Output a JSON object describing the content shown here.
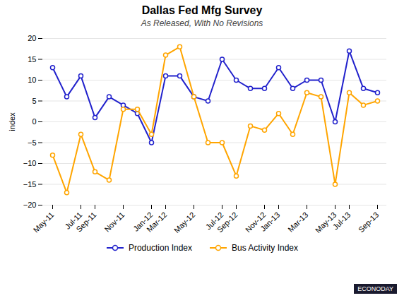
{
  "chart_data": {
    "type": "line",
    "title": "Dallas Fed Mfg Survey",
    "subtitle": "As Released, With No Revisions",
    "ylabel": "index",
    "categories": [
      "May-11",
      null,
      "Jul-11",
      "Sep-11",
      null,
      "Nov-11",
      null,
      "Jan-12",
      "Mar-12",
      null,
      "May-12",
      null,
      "Jul-12",
      "Sep-12",
      null,
      "Nov-12",
      "Jan-13",
      null,
      "Mar-13",
      null,
      "May-13",
      "Jul-13",
      null,
      "Sep-13"
    ],
    "series": [
      {
        "name": "Production Index",
        "color": "#2222CC",
        "marker": "circle",
        "values": [
          13,
          6,
          11,
          1,
          6,
          4,
          2,
          -5,
          11,
          11,
          6,
          5,
          15,
          10,
          8,
          8,
          13,
          8,
          10,
          10,
          0,
          17,
          8,
          7
        ]
      },
      {
        "name": "Bus Activity Index",
        "color": "#FFA500",
        "marker": "circle",
        "values": [
          -8,
          -17,
          -3,
          -12,
          -14,
          3,
          3,
          -3,
          16,
          18,
          6,
          -5,
          -5,
          -13,
          -1,
          -2,
          2,
          -3,
          7,
          6,
          -15,
          7,
          4,
          5
        ]
      }
    ],
    "ylim": [
      -20,
      20
    ],
    "yticks": [
      -20,
      -15,
      -10,
      -5,
      0,
      5,
      10,
      15,
      20
    ],
    "grid": true,
    "legend": "bottom",
    "annotations": [
      "ECONODAY"
    ]
  }
}
